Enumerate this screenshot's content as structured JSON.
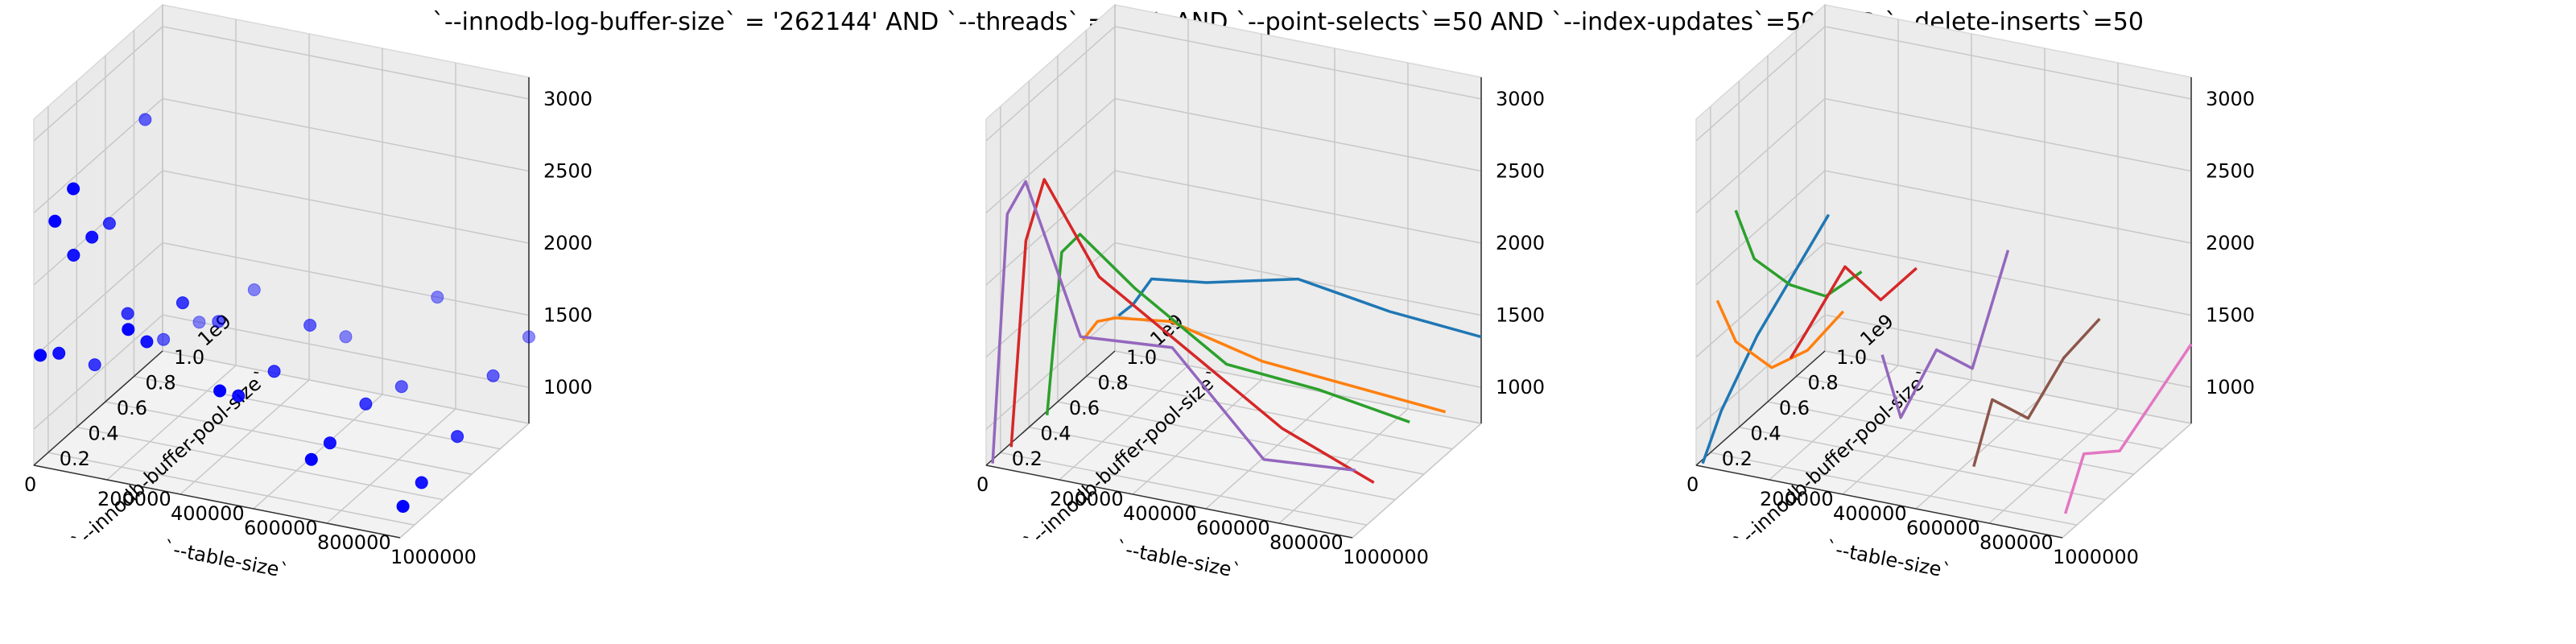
{
  "figure_title": "`--innodb-log-buffer-size` = '262144' AND `--threads` = '50'  AND `--point-selects`=50 AND `--index-updates`=50 AND `--delete-inserts`=50",
  "colors": {
    "scatter": "#0000ff",
    "series": [
      "#1f77b4",
      "#ff7f0e",
      "#2ca02c",
      "#d62728",
      "#9467bd",
      "#8c564b",
      "#e377c2"
    ]
  },
  "chart_data": [
    {
      "type": "scatter",
      "projection": "3d",
      "xlabel": "`--table-size`",
      "ylabel": "`--innodb-buffer-pool-size`",
      "zlabel": "",
      "xlim": [
        0,
        1000000
      ],
      "ylim": [
        0.1,
        1.0
      ],
      "zlim": [
        750,
        3150
      ],
      "xticks": [
        "0",
        "200000",
        "400000",
        "600000",
        "800000",
        "1000000"
      ],
      "yticks": [
        "0.2",
        "0.4",
        "0.6",
        "0.8",
        "1.0"
      ],
      "zticks": [
        "1000",
        "1500",
        "2000",
        "2500",
        "3000"
      ],
      "y_offset_label": "1e9",
      "grid": true,
      "points": [
        {
          "x": 10000,
          "y": 0.12,
          "z": 1500
        },
        {
          "x": 10000,
          "y": 0.25,
          "z": 1400
        },
        {
          "x": 10000,
          "y": 0.5,
          "z": 1100
        },
        {
          "x": 50000,
          "y": 0.12,
          "z": 2450
        },
        {
          "x": 50000,
          "y": 0.25,
          "z": 2100
        },
        {
          "x": 50000,
          "y": 0.5,
          "z": 2100
        },
        {
          "x": 50000,
          "y": 0.75,
          "z": 2600
        },
        {
          "x": 100000,
          "y": 0.12,
          "z": 2700
        },
        {
          "x": 100000,
          "y": 0.25,
          "z": 2250
        },
        {
          "x": 100000,
          "y": 0.5,
          "z": 1500
        },
        {
          "x": 100000,
          "y": 0.75,
          "z": 1100
        },
        {
          "x": 100000,
          "y": 1.0,
          "z": 1000
        },
        {
          "x": 250000,
          "y": 0.12,
          "z": 1800
        },
        {
          "x": 250000,
          "y": 0.25,
          "z": 1600
        },
        {
          "x": 250000,
          "y": 0.5,
          "z": 1650
        },
        {
          "x": 250000,
          "y": 0.75,
          "z": 1300
        },
        {
          "x": 250000,
          "y": 1.0,
          "z": 1300
        },
        {
          "x": 500000,
          "y": 0.12,
          "z": 1500
        },
        {
          "x": 500000,
          "y": 0.25,
          "z": 1350
        },
        {
          "x": 500000,
          "y": 0.5,
          "z": 1300
        },
        {
          "x": 500000,
          "y": 0.75,
          "z": 1400
        },
        {
          "x": 500000,
          "y": 1.0,
          "z": 1100
        },
        {
          "x": 750000,
          "y": 0.12,
          "z": 1150
        },
        {
          "x": 750000,
          "y": 0.25,
          "z": 1150
        },
        {
          "x": 750000,
          "y": 0.5,
          "z": 1200
        },
        {
          "x": 750000,
          "y": 0.75,
          "z": 1100
        },
        {
          "x": 750000,
          "y": 1.0,
          "z": 1500
        },
        {
          "x": 1000000,
          "y": 0.12,
          "z": 950
        },
        {
          "x": 1000000,
          "y": 0.25,
          "z": 1000
        },
        {
          "x": 1000000,
          "y": 0.5,
          "z": 1100
        },
        {
          "x": 1000000,
          "y": 0.75,
          "z": 1300
        },
        {
          "x": 1000000,
          "y": 1.0,
          "z": 1350
        }
      ]
    },
    {
      "type": "line",
      "projection": "3d",
      "xlabel": "`--table-size`",
      "ylabel": "`--innodb-buffer-pool-size`",
      "zlabel": "",
      "xlim": [
        0,
        1000000
      ],
      "ylim": [
        0.1,
        1.0
      ],
      "zlim": [
        750,
        3150
      ],
      "xticks": [
        "0",
        "200000",
        "400000",
        "600000",
        "800000",
        "1000000"
      ],
      "yticks": [
        "0.2",
        "0.4",
        "0.6",
        "0.8",
        "1.0"
      ],
      "zticks": [
        "1000",
        "1500",
        "2000",
        "2500",
        "3000"
      ],
      "y_offset_label": "1e9",
      "grid": true,
      "line_group": "y",
      "x": [
        10000,
        50000,
        100000,
        250000,
        500000,
        750000,
        1000000
      ],
      "series": [
        {
          "y": 1.0,
          "z": [
            1000,
            1100,
            1300,
            1350,
            1500,
            1400,
            1350
          ]
        },
        {
          "y": 0.75,
          "z": [
            1050,
            1200,
            1250,
            1300,
            1150,
            1100,
            1050
          ]
        },
        {
          "y": 0.5,
          "z": [
            750,
            1900,
            2050,
            1750,
            1350,
            1300,
            1200
          ]
        },
        {
          "y": 0.25,
          "z": [
            750,
            2200,
            2650,
            2050,
            1650,
            1250,
            1000
          ]
        },
        {
          "y": 0.12,
          "z": [
            750,
            2500,
            2750,
            1750,
            1800,
            1150,
            1200
          ]
        }
      ]
    },
    {
      "type": "line",
      "projection": "3d",
      "xlabel": "`--table-size`",
      "ylabel": "`--innodb-buffer-pool-size`",
      "zlabel": "",
      "xlim": [
        0,
        1000000
      ],
      "ylim": [
        0.1,
        1.0
      ],
      "zlim": [
        750,
        3150
      ],
      "xticks": [
        "0",
        "200000",
        "400000",
        "600000",
        "800000",
        "1000000"
      ],
      "yticks": [
        "0.2",
        "0.4",
        "0.6",
        "0.8",
        "1.0"
      ],
      "zticks": [
        "1000",
        "1500",
        "2000",
        "2500",
        "3000"
      ],
      "y_offset_label": "1e9",
      "grid": true,
      "line_group": "x",
      "y": [
        0.12,
        0.25,
        0.5,
        0.75,
        1.0
      ],
      "series": [
        {
          "x": 10000,
          "z": [
            750,
            1000,
            1300,
            1500,
            1700
          ]
        },
        {
          "x": 50000,
          "z": [
            1900,
            1500,
            1100,
            1000,
            1050
          ]
        },
        {
          "x": 100000,
          "z": [
            2550,
            2100,
            1700,
            1400,
            1350
          ]
        },
        {
          "x": 250000,
          "z": [
            1600,
            1700,
            1900,
            1450,
            1450
          ]
        },
        {
          "x": 500000,
          "z": [
            1750,
            1200,
            1450,
            1100,
            1700
          ]
        },
        {
          "x": 750000,
          "z": [
            1100,
            1450,
            1100,
            1300,
            1350
          ]
        },
        {
          "x": 1000000,
          "z": [
            900,
            1200,
            1000,
            1150,
            1300
          ]
        }
      ]
    }
  ]
}
